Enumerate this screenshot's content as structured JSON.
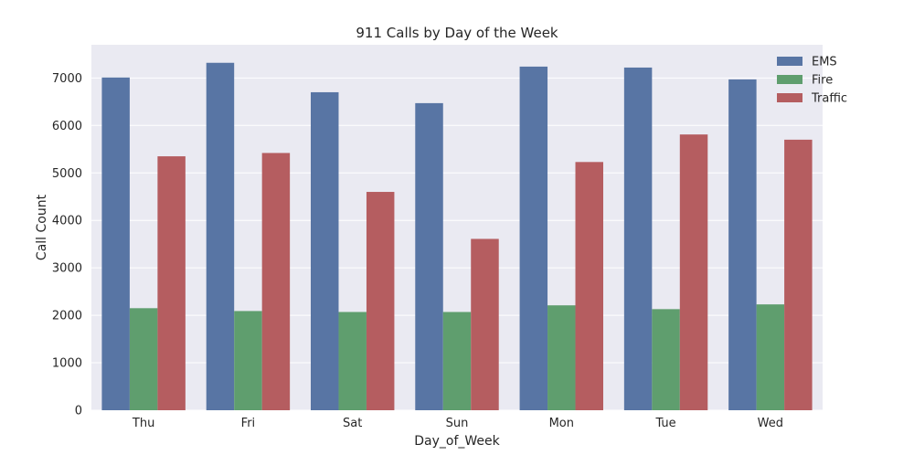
{
  "chart_data": {
    "type": "bar",
    "title": "911 Calls by Day of the Week",
    "xlabel": "Day_of_Week",
    "ylabel": "Call Count",
    "categories": [
      "Thu",
      "Fri",
      "Sat",
      "Sun",
      "Mon",
      "Tue",
      "Wed"
    ],
    "series": [
      {
        "name": "EMS",
        "color": "#5875a4",
        "values": [
          7010,
          7320,
          6700,
          6470,
          7240,
          7220,
          6970
        ]
      },
      {
        "name": "Fire",
        "color": "#5f9e6e",
        "values": [
          2150,
          2090,
          2070,
          2070,
          2210,
          2130,
          2230
        ]
      },
      {
        "name": "Traffic",
        "color": "#b55d60",
        "values": [
          5350,
          5420,
          4600,
          3610,
          5230,
          5810,
          5700
        ]
      }
    ],
    "ylim": [
      0,
      7700
    ],
    "yticks": [
      0,
      1000,
      2000,
      3000,
      4000,
      5000,
      6000,
      7000
    ],
    "grid": true,
    "legend_position": "top-right",
    "background_color": "#eaeaf2",
    "grid_color": "#ffffff"
  }
}
